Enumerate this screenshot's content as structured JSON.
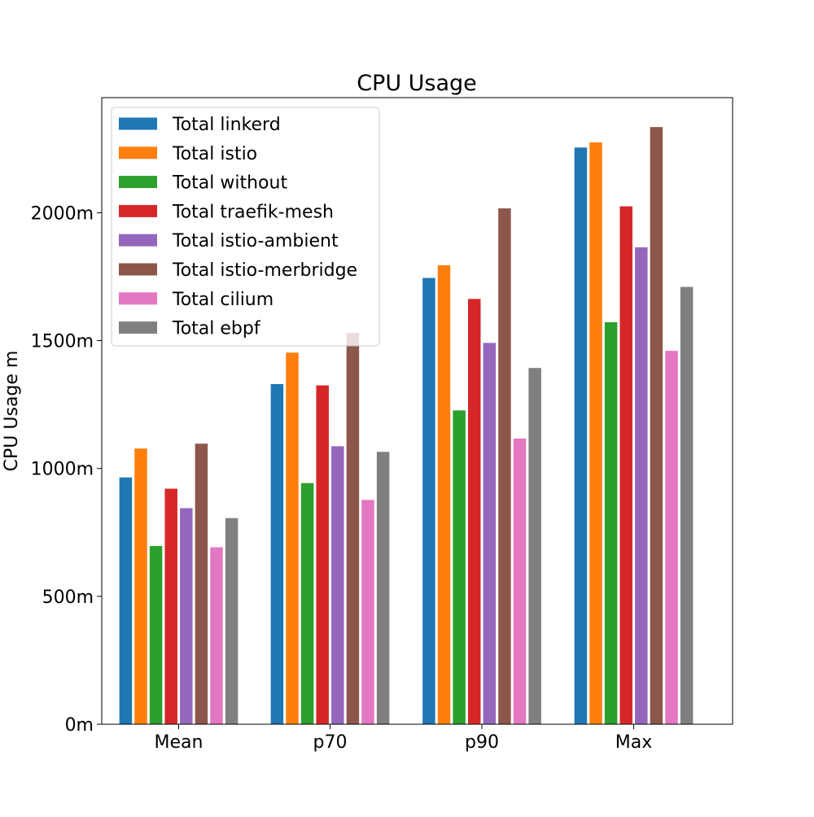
{
  "chart_data": {
    "type": "bar",
    "title": "CPU Usage",
    "xlabel": "",
    "ylabel": "CPU Usage m",
    "categories": [
      "Mean",
      "p70",
      "p90",
      "Max"
    ],
    "ylim": [
      0,
      2450
    ],
    "yticks": [
      0,
      500,
      1000,
      1500,
      2000
    ],
    "ytick_labels": [
      "0m",
      "500m",
      "1000m",
      "1500m",
      "2000m"
    ],
    "legend_position": "upper-left",
    "grid": false,
    "series": [
      {
        "name": "Total linkerd",
        "color": "#1f77b4",
        "values": [
          965,
          1330,
          1745,
          2255
        ]
      },
      {
        "name": "Total istio",
        "color": "#ff7f0e",
        "values": [
          1078,
          1453,
          1795,
          2275
        ]
      },
      {
        "name": "Total without",
        "color": "#2ca02c",
        "values": [
          697,
          943,
          1227,
          1572
        ]
      },
      {
        "name": "Total traefik-mesh",
        "color": "#d62728",
        "values": [
          921,
          1325,
          1663,
          2025
        ]
      },
      {
        "name": "Total istio-ambient",
        "color": "#9467bd",
        "values": [
          845,
          1087,
          1491,
          1865
        ]
      },
      {
        "name": "Total istio-merbridge",
        "color": "#8c564b",
        "values": [
          1097,
          1530,
          2017,
          2335
        ]
      },
      {
        "name": "Total cilium",
        "color": "#e377c2",
        "values": [
          692,
          877,
          1117,
          1460
        ]
      },
      {
        "name": "Total ebpf",
        "color": "#7f7f7f",
        "values": [
          806,
          1065,
          1393,
          1710
        ]
      }
    ]
  }
}
